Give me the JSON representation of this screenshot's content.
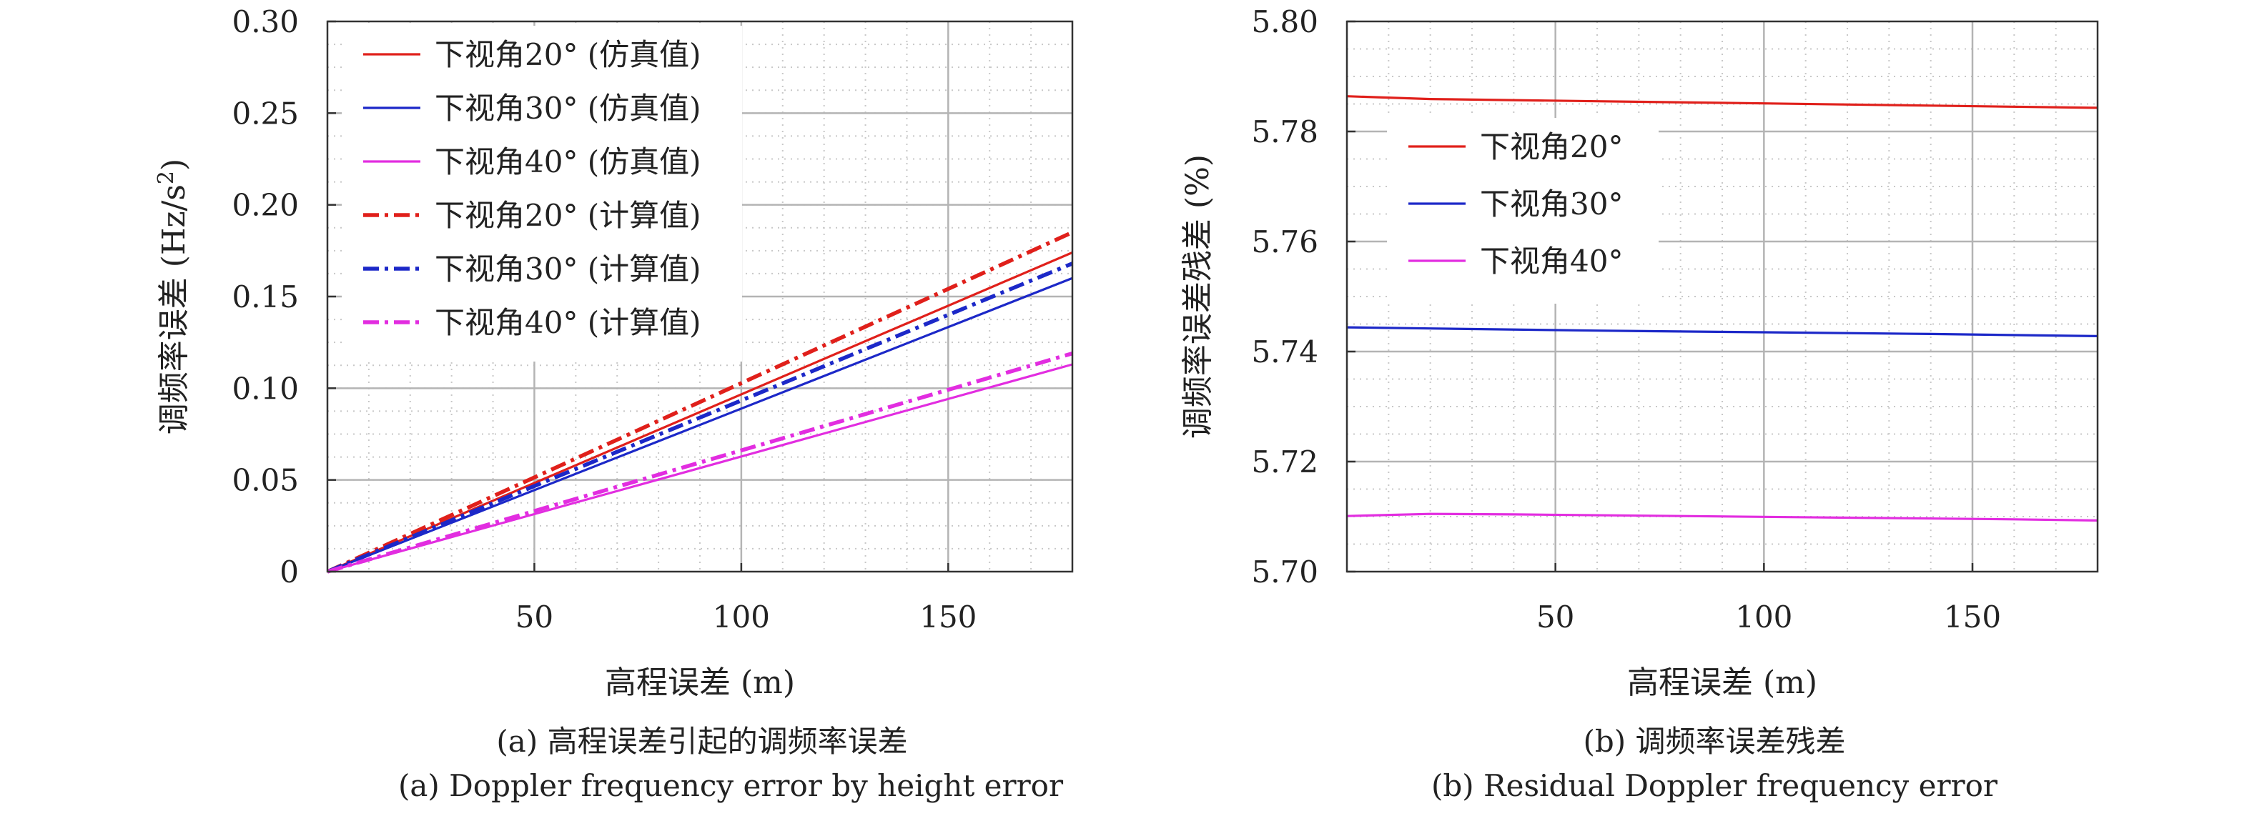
{
  "captions": {
    "a_zh": "(a) 高程误差引起的调频率误差",
    "a_en": "(a) Doppler frequency error by height error",
    "b_zh": "(b) 调频率误差残差",
    "b_en": "(b) Residual Doppler frequency error"
  },
  "colors": {
    "red": "#e0201b",
    "blue": "#1c28c8",
    "magenta": "#e22de0",
    "grid_major": "#b4b4b4",
    "grid_minor": "#c8c8c8"
  },
  "chart_data": [
    {
      "type": "line",
      "xlabel": "高程误差 (m)",
      "ylabel_main": "调频率误差 (Hz/s",
      "ylabel_sup": "2",
      "ylabel_end": ")",
      "xlim": [
        0,
        180
      ],
      "ylim": [
        0,
        0.3
      ],
      "xticks": [
        50,
        100,
        150
      ],
      "yticks": [
        0,
        0.05,
        0.1,
        0.15,
        0.2,
        0.25,
        0.3
      ],
      "ytick_labels": [
        "0",
        "0.05",
        "0.10",
        "0.15",
        "0.20",
        "0.25",
        "0.30"
      ],
      "grid": true,
      "legend_position": "top-left",
      "series": [
        {
          "name": "下视角20° (仿真值)",
          "color": "red",
          "style": "solid",
          "x": [
            0,
            180
          ],
          "y": [
            0,
            0.174
          ]
        },
        {
          "name": "下视角30° (仿真值)",
          "color": "blue",
          "style": "solid",
          "x": [
            0,
            180
          ],
          "y": [
            0,
            0.16
          ]
        },
        {
          "name": "下视角40° (仿真值)",
          "color": "magenta",
          "style": "solid",
          "x": [
            0,
            180
          ],
          "y": [
            0,
            0.113
          ]
        },
        {
          "name": "下视角20° (计算值)",
          "color": "red",
          "style": "dashdot",
          "x": [
            0,
            180
          ],
          "y": [
            0,
            0.185
          ]
        },
        {
          "name": "下视角30° (计算值)",
          "color": "blue",
          "style": "dashdot",
          "x": [
            0,
            180
          ],
          "y": [
            0,
            0.168
          ]
        },
        {
          "name": "下视角40° (计算值)",
          "color": "magenta",
          "style": "dashdot",
          "x": [
            0,
            180
          ],
          "y": [
            0,
            0.119
          ]
        }
      ]
    },
    {
      "type": "line",
      "xlabel": "高程误差 (m)",
      "ylabel": "调频率误差残差 (%)",
      "xlim": [
        0,
        180
      ],
      "ylim": [
        5.7,
        5.8
      ],
      "xticks": [
        50,
        100,
        150
      ],
      "yticks": [
        5.7,
        5.72,
        5.74,
        5.76,
        5.78,
        5.8
      ],
      "ytick_labels": [
        "5.70",
        "5.72",
        "5.74",
        "5.76",
        "5.78",
        "5.80"
      ],
      "grid": true,
      "legend_position": "upper-left",
      "series": [
        {
          "name": "下视角20°",
          "color": "red",
          "style": "solid",
          "x": [
            0,
            20,
            60,
            100,
            140,
            180
          ],
          "y": [
            5.7864,
            5.7859,
            5.7855,
            5.7851,
            5.7847,
            5.7843
          ]
        },
        {
          "name": "下视角30°",
          "color": "blue",
          "style": "solid",
          "x": [
            0,
            20,
            60,
            100,
            140,
            180
          ],
          "y": [
            5.7444,
            5.7442,
            5.7438,
            5.7435,
            5.7432,
            5.7428
          ]
        },
        {
          "name": "下视角40°",
          "color": "magenta",
          "style": "solid",
          "x": [
            0,
            20,
            40,
            80,
            120,
            160,
            180
          ],
          "y": [
            5.7101,
            5.7105,
            5.7104,
            5.7101,
            5.7098,
            5.7095,
            5.7093
          ]
        }
      ]
    }
  ]
}
